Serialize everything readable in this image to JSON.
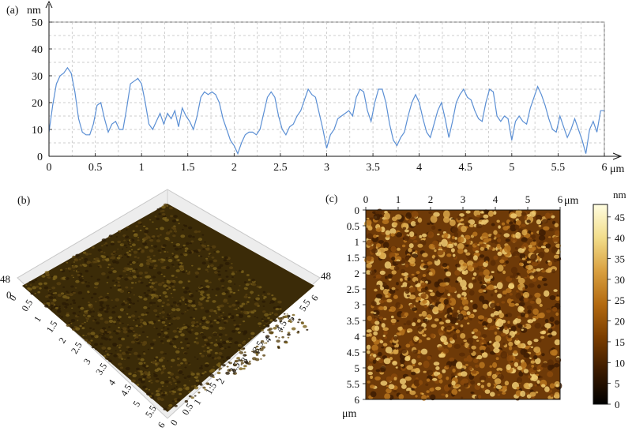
{
  "panels": {
    "a": "(a)",
    "b": "(b)",
    "c": "(c)"
  },
  "chart_data": [
    {
      "type": "line",
      "panel": "(a)",
      "xlabel": "μm",
      "ylabel": "nm",
      "xlim": [
        0,
        6
      ],
      "ylim": [
        0,
        50
      ],
      "grid": true,
      "grid_style": "dashed",
      "x_ticks": [
        "0",
        "0.5",
        "1",
        "1.5",
        "2",
        "2.5",
        "3",
        "3.5",
        "4",
        "4.5",
        "5",
        "5.5",
        "6"
      ],
      "y_ticks": [
        "0",
        "10",
        "20",
        "30",
        "40",
        "50"
      ],
      "series": [
        {
          "color": "#5b8fd4",
          "points": [
            [
              0.0,
              9
            ],
            [
              0.04,
              19
            ],
            [
              0.08,
              27
            ],
            [
              0.12,
              30
            ],
            [
              0.16,
              31
            ],
            [
              0.2,
              33
            ],
            [
              0.24,
              31
            ],
            [
              0.28,
              24
            ],
            [
              0.32,
              14
            ],
            [
              0.36,
              9
            ],
            [
              0.4,
              8
            ],
            [
              0.44,
              8
            ],
            [
              0.48,
              12
            ],
            [
              0.52,
              19
            ],
            [
              0.56,
              20
            ],
            [
              0.6,
              14
            ],
            [
              0.64,
              9
            ],
            [
              0.68,
              12
            ],
            [
              0.72,
              13
            ],
            [
              0.76,
              10
            ],
            [
              0.8,
              10
            ],
            [
              0.84,
              18
            ],
            [
              0.88,
              27
            ],
            [
              0.92,
              28
            ],
            [
              0.96,
              29
            ],
            [
              1.0,
              27
            ],
            [
              1.04,
              20
            ],
            [
              1.08,
              12
            ],
            [
              1.12,
              10
            ],
            [
              1.16,
              13
            ],
            [
              1.2,
              16
            ],
            [
              1.24,
              12
            ],
            [
              1.28,
              16
            ],
            [
              1.32,
              14
            ],
            [
              1.36,
              17
            ],
            [
              1.4,
              11
            ],
            [
              1.44,
              18
            ],
            [
              1.48,
              15
            ],
            [
              1.52,
              13
            ],
            [
              1.56,
              10
            ],
            [
              1.6,
              15
            ],
            [
              1.64,
              22
            ],
            [
              1.68,
              24
            ],
            [
              1.72,
              23
            ],
            [
              1.76,
              24
            ],
            [
              1.8,
              23
            ],
            [
              1.84,
              20
            ],
            [
              1.88,
              14
            ],
            [
              1.92,
              10
            ],
            [
              1.96,
              6
            ],
            [
              2.0,
              4
            ],
            [
              2.04,
              1
            ],
            [
              2.08,
              5
            ],
            [
              2.12,
              8
            ],
            [
              2.16,
              9
            ],
            [
              2.2,
              9
            ],
            [
              2.24,
              8
            ],
            [
              2.28,
              10
            ],
            [
              2.32,
              16
            ],
            [
              2.36,
              22
            ],
            [
              2.4,
              24
            ],
            [
              2.44,
              22
            ],
            [
              2.48,
              15
            ],
            [
              2.52,
              10
            ],
            [
              2.56,
              8
            ],
            [
              2.6,
              11
            ],
            [
              2.64,
              12
            ],
            [
              2.68,
              15
            ],
            [
              2.72,
              17
            ],
            [
              2.76,
              21
            ],
            [
              2.8,
              25
            ],
            [
              2.84,
              23
            ],
            [
              2.88,
              22
            ],
            [
              2.92,
              16
            ],
            [
              2.96,
              10
            ],
            [
              3.0,
              3
            ],
            [
              3.04,
              8
            ],
            [
              3.08,
              10
            ],
            [
              3.12,
              14
            ],
            [
              3.16,
              15
            ],
            [
              3.2,
              16
            ],
            [
              3.24,
              17
            ],
            [
              3.28,
              15
            ],
            [
              3.32,
              22
            ],
            [
              3.36,
              25
            ],
            [
              3.4,
              24
            ],
            [
              3.44,
              17
            ],
            [
              3.48,
              13
            ],
            [
              3.52,
              20
            ],
            [
              3.56,
              25
            ],
            [
              3.6,
              25
            ],
            [
              3.64,
              20
            ],
            [
              3.68,
              12
            ],
            [
              3.72,
              6
            ],
            [
              3.76,
              4
            ],
            [
              3.8,
              7
            ],
            [
              3.84,
              9
            ],
            [
              3.88,
              15
            ],
            [
              3.92,
              20
            ],
            [
              3.96,
              23
            ],
            [
              4.0,
              20
            ],
            [
              4.04,
              14
            ],
            [
              4.08,
              9
            ],
            [
              4.12,
              7
            ],
            [
              4.16,
              12
            ],
            [
              4.2,
              17
            ],
            [
              4.24,
              20
            ],
            [
              4.28,
              14
            ],
            [
              4.32,
              7
            ],
            [
              4.36,
              13
            ],
            [
              4.4,
              20
            ],
            [
              4.44,
              23
            ],
            [
              4.48,
              25
            ],
            [
              4.52,
              22
            ],
            [
              4.56,
              21
            ],
            [
              4.6,
              17
            ],
            [
              4.64,
              14
            ],
            [
              4.68,
              13
            ],
            [
              4.72,
              20
            ],
            [
              4.76,
              25
            ],
            [
              4.8,
              24
            ],
            [
              4.84,
              15
            ],
            [
              4.88,
              13
            ],
            [
              4.92,
              15
            ],
            [
              4.96,
              14
            ],
            [
              5.0,
              6
            ],
            [
              5.04,
              13
            ],
            [
              5.08,
              15
            ],
            [
              5.12,
              13
            ],
            [
              5.16,
              12
            ],
            [
              5.2,
              18
            ],
            [
              5.24,
              22
            ],
            [
              5.28,
              26
            ],
            [
              5.32,
              23
            ],
            [
              5.36,
              19
            ],
            [
              5.4,
              14
            ],
            [
              5.44,
              10
            ],
            [
              5.48,
              9
            ],
            [
              5.52,
              15
            ],
            [
              5.56,
              11
            ],
            [
              5.6,
              7
            ],
            [
              5.64,
              10
            ],
            [
              5.68,
              14
            ],
            [
              5.72,
              10
            ],
            [
              5.76,
              6
            ],
            [
              5.8,
              1
            ],
            [
              5.84,
              10
            ],
            [
              5.88,
              13
            ],
            [
              5.92,
              9
            ],
            [
              5.96,
              17
            ],
            [
              6.0,
              17
            ]
          ]
        }
      ]
    },
    {
      "type": "surface",
      "panel": "(b)",
      "z_label_left": "48",
      "z_label_right": "48",
      "z_zero_label": "0",
      "left_axis_ticks": [
        "0",
        "0.5",
        "1",
        "1.5",
        "2",
        "2.5",
        "3",
        "3.5",
        "4",
        "4.5",
        "5",
        "5.5",
        "6"
      ],
      "right_axis_ticks": [
        "0",
        "0.5",
        "1",
        "1.5",
        "2",
        "2.5",
        "3",
        "3.5",
        "4",
        "4.5",
        "5",
        "5.5",
        "6"
      ],
      "colors": [
        "#2a1c05",
        "#5a4210",
        "#7a621c"
      ]
    },
    {
      "type": "heatmap",
      "panel": "(c)",
      "x_unit": "μm",
      "y_unit": "μm",
      "x_ticks": [
        "0",
        "1",
        "2",
        "3",
        "4",
        "5",
        "6"
      ],
      "y_ticks": [
        "0",
        "0.5",
        "1",
        "1.5",
        "2",
        "2.5",
        "3",
        "3.5",
        "4",
        "4.5",
        "5",
        "5.5",
        "6"
      ],
      "colorbar": {
        "label": "nm",
        "range": [
          0,
          48
        ],
        "ticks": [
          "0",
          "5",
          "10",
          "15",
          "20",
          "25",
          "30",
          "35",
          "40",
          "45"
        ],
        "stops": [
          "#000000",
          "#3a1a00",
          "#7a3d00",
          "#b36a10",
          "#d9a040",
          "#f2dd8a",
          "#fffde0"
        ]
      }
    }
  ]
}
